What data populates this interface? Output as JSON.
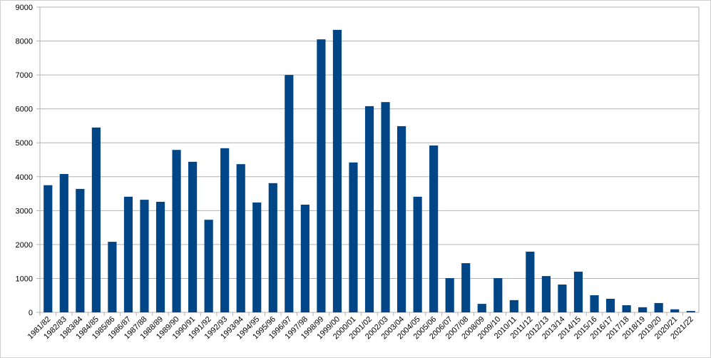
{
  "chart_data": {
    "type": "bar",
    "categories": [
      "1981/82",
      "1982/83",
      "1983/84",
      "1984/85",
      "1985/86",
      "1986/87",
      "1987/88",
      "1988/89",
      "1989/90",
      "1990/91",
      "1991/92",
      "1992/93",
      "1993/94",
      "1994/95",
      "1995/96",
      "1996/97",
      "1997/98",
      "1998/99",
      "1999/00",
      "2000/01",
      "2001/02",
      "2002/03",
      "2003/04",
      "2004/05",
      "2005/06",
      "2006/07",
      "2007/08",
      "2008/09",
      "2009/10",
      "2010/11",
      "2011/12",
      "2012/13",
      "2013/14",
      "2014/15",
      "2015/16",
      "2016/17",
      "2017/18",
      "2018/19",
      "2019/20",
      "2020/21",
      "2021/22"
    ],
    "values": [
      3750,
      4080,
      3640,
      5450,
      2080,
      3410,
      3320,
      3260,
      4790,
      4440,
      2730,
      4840,
      4370,
      3240,
      3810,
      7000,
      3175,
      8050,
      8330,
      4420,
      6080,
      6200,
      5490,
      3410,
      4920,
      1010,
      1450,
      250,
      1010,
      360,
      1790,
      1070,
      820,
      1200,
      505,
      400,
      210,
      150,
      275,
      90,
      40
    ],
    "color": "#004586",
    "ylim": [
      0,
      9000
    ],
    "yticks": [
      0,
      1000,
      2000,
      3000,
      4000,
      5000,
      6000,
      7000,
      8000,
      9000
    ],
    "grid": true
  }
}
